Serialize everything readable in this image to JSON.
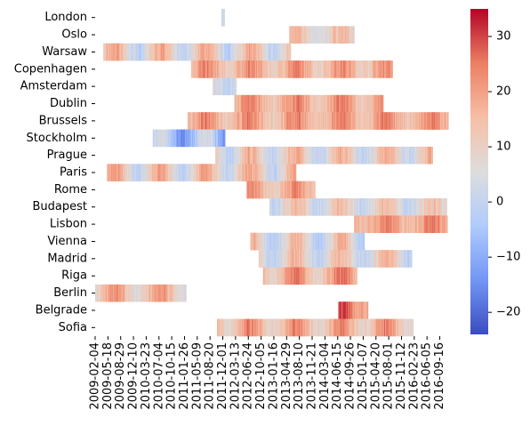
{
  "chart_data": {
    "type": "heatmap",
    "title": "",
    "xlabel": "",
    "ylabel": "",
    "colormap": "coolwarm",
    "colormap_stops": [
      "#3b4cc0",
      "#7396f5",
      "#b0cbfc",
      "#dddddd",
      "#f6bfa6",
      "#ec7f63",
      "#b40426"
    ],
    "vmin": -24,
    "vmax": 35,
    "colorbar_ticks": [
      "-20",
      "-10",
      "0",
      "10",
      "20",
      "30"
    ],
    "x_range": [
      "2009-02-04",
      "2016-11-30"
    ],
    "x_tick_labels": [
      "2009-02-04",
      "2009-05-18",
      "2009-08-29",
      "2009-12-10",
      "2010-03-23",
      "2010-07-04",
      "2010-10-15",
      "2011-01-26",
      "2011-05-09",
      "2011-08-20",
      "2011-12-01",
      "2012-03-13",
      "2012-06-24",
      "2012-10-05",
      "2013-01-16",
      "2013-04-29",
      "2013-08-10",
      "2013-11-21",
      "2014-03-04",
      "2014-06-15",
      "2014-09-26",
      "2015-01-07",
      "2015-04-20",
      "2015-08-01",
      "2015-11-12",
      "2016-02-23",
      "2016-06-05",
      "2016-09-16"
    ],
    "cities": [
      "London",
      "Oslo",
      "Warsaw",
      "Copenhagen",
      "Amsterdam",
      "Dublin",
      "Brussels",
      "Stockholm",
      "Prague",
      "Paris",
      "Rome",
      "Budapest",
      "Lisbon",
      "Vienna",
      "Madrid",
      "Riga",
      "Berlin",
      "Belgrade",
      "Sofia"
    ],
    "series": [
      {
        "name": "London",
        "start": "2011-11-20",
        "end": "2011-12-15",
        "mean": 6,
        "amplitude": 4
      },
      {
        "name": "Oslo",
        "start": "2013-05-20",
        "end": "2014-10-29",
        "mean": 10,
        "amplitude": 6
      },
      {
        "name": "Warsaw",
        "start": "2009-04-10",
        "end": "2013-06-01",
        "mean": 9,
        "amplitude": 10
      },
      {
        "name": "Copenhagen",
        "start": "2011-03-20",
        "end": "2015-09-02",
        "mean": 17,
        "amplitude": 6
      },
      {
        "name": "Amsterdam",
        "start": "2011-09-10",
        "end": "2012-03-20",
        "mean": 4,
        "amplitude": 4
      },
      {
        "name": "Dublin",
        "start": "2012-03-01",
        "end": "2015-06-18",
        "mean": 18,
        "amplitude": 6
      },
      {
        "name": "Brussels",
        "start": "2011-02-20",
        "end": "2016-11-25",
        "mean": 18,
        "amplitude": 6
      },
      {
        "name": "Stockholm",
        "start": "2010-05-15",
        "end": "2011-12-20",
        "mean": -5,
        "amplitude": 10
      },
      {
        "name": "Prague",
        "start": "2011-10-01",
        "end": "2016-07-20",
        "mean": 9,
        "amplitude": 9
      },
      {
        "name": "Paris",
        "start": "2009-05-10",
        "end": "2013-07-14",
        "mean": 10,
        "amplitude": 10
      },
      {
        "name": "Rome",
        "start": "2012-06-10",
        "end": "2013-12-15",
        "mean": 17,
        "amplitude": 6
      },
      {
        "name": "Budapest",
        "start": "2012-12-10",
        "end": "2016-11-12",
        "mean": 8,
        "amplitude": 8
      },
      {
        "name": "Lisbon",
        "start": "2014-10-25",
        "end": "2016-11-18",
        "mean": 19,
        "amplitude": 5
      },
      {
        "name": "Vienna",
        "start": "2012-07-10",
        "end": "2015-01-17",
        "mean": 7,
        "amplitude": 10
      },
      {
        "name": "Madrid",
        "start": "2012-09-15",
        "end": "2016-02-04",
        "mean": 8,
        "amplitude": 9
      },
      {
        "name": "Riga",
        "start": "2012-10-20",
        "end": "2014-11-20",
        "mean": 18,
        "amplitude": 8
      },
      {
        "name": "Berlin",
        "start": "2009-02-04",
        "end": "2011-02-09",
        "mean": 14,
        "amplitude": 8
      },
      {
        "name": "Belgrade",
        "start": "2014-06-20",
        "end": "2015-02-15",
        "mean": 24,
        "amplitude": 6
      },
      {
        "name": "Sofia",
        "start": "2011-10-15",
        "end": "2016-02-15",
        "mean": 16,
        "amplitude": 8
      }
    ]
  }
}
